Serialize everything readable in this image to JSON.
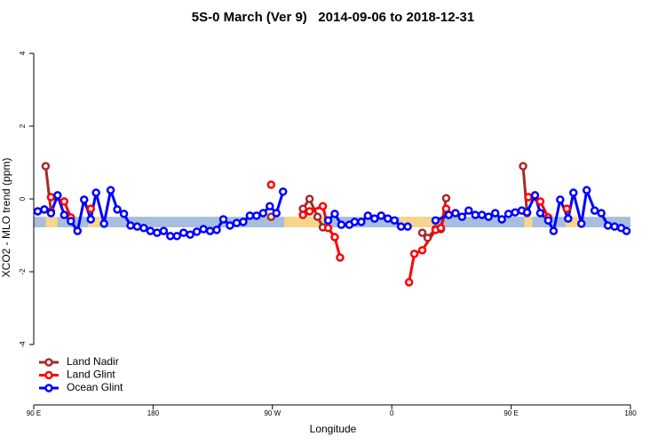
{
  "chart_data": {
    "type": "line",
    "title": "5S-0 March (Ver 9)   2014-09-06 to 2018-12-31",
    "x_label": "Longitude",
    "y_label": "XCO2 - MLO trend (ppm)",
    "xlim": [
      90,
      540
    ],
    "xticks": [
      {
        "value": 90,
        "label": "90 E"
      },
      {
        "value": 180,
        "label": "180"
      },
      {
        "value": 270,
        "label": "90 W"
      },
      {
        "value": 360,
        "label": "0"
      },
      {
        "value": 450,
        "label": "90 E"
      },
      {
        "value": 540,
        "label": "180"
      }
    ],
    "ylim": [
      -5.66,
      4.49
    ],
    "yticks": [
      -4,
      -2,
      0,
      2,
      4
    ],
    "band_ylim": [
      -0.78,
      -0.49
    ],
    "band_color": "#a7bedc",
    "highlight_color": "#f6d68c",
    "highlights": [
      [
        99,
        108
      ],
      [
        131,
        141
      ],
      [
        279,
        314
      ],
      [
        366,
        393
      ],
      [
        460,
        466
      ],
      [
        491,
        501
      ]
    ],
    "legend_position": "bottom-left",
    "series": [
      {
        "name": "Land Nadir",
        "color": "#a52a2a",
        "x": [
          99,
          103,
          null,
          269,
          null,
          293,
          298,
          304,
          308,
          null,
          383,
          387,
          393,
          397,
          401,
          null,
          459,
          462
        ],
        "values": [
          0.9,
          -0.34,
          null,
          -0.49,
          null,
          -0.27,
          0.0,
          -0.49,
          -0.78,
          null,
          -0.93,
          -1.07,
          -0.83,
          -0.83,
          0.02,
          null,
          0.9,
          -0.39
        ]
      },
      {
        "name": "Land Glint",
        "color": "#ff0000",
        "x": [
          103,
          113,
          118,
          null,
          133,
          null,
          269,
          null,
          293,
          298,
          308,
          312,
          317,
          321,
          null,
          373,
          377,
          383,
          393,
          397,
          401,
          null,
          463,
          472,
          478,
          null,
          492
        ],
        "values": [
          0.05,
          -0.07,
          -0.51,
          null,
          -0.27,
          null,
          0.39,
          null,
          -0.44,
          -0.34,
          -0.2,
          -0.8,
          -1.05,
          -1.61,
          null,
          -2.29,
          -1.51,
          -1.41,
          -0.85,
          -0.8,
          -0.27,
          null,
          0.05,
          -0.07,
          -0.51,
          null,
          -0.27
        ]
      },
      {
        "name": "Ocean Glint",
        "color": "#0000ff",
        "x": [
          93,
          98,
          103,
          108,
          113,
          118,
          123,
          128,
          133,
          137,
          143,
          148,
          153,
          158,
          163,
          168,
          173,
          178,
          183,
          188,
          193,
          198,
          203,
          208,
          213,
          218,
          223,
          228,
          233,
          238,
          243,
          248,
          253,
          258,
          263,
          268,
          273,
          278,
          null,
          312,
          317,
          322,
          328,
          332,
          337,
          342,
          347,
          352,
          357,
          362,
          367,
          372,
          null,
          393,
          403,
          408,
          413,
          418,
          423,
          428,
          433,
          438,
          443,
          448,
          453,
          458,
          462,
          468,
          472,
          478,
          482,
          487,
          493,
          497,
          503,
          507,
          513,
          518,
          523,
          528,
          533,
          537
        ],
        "values": [
          -0.34,
          -0.29,
          -0.39,
          0.1,
          -0.44,
          -0.61,
          -0.88,
          -0.02,
          -0.56,
          0.17,
          -0.68,
          0.24,
          -0.29,
          -0.41,
          -0.73,
          -0.76,
          -0.8,
          -0.88,
          -0.93,
          -0.88,
          -1.02,
          -1.02,
          -0.93,
          -0.98,
          -0.9,
          -0.83,
          -0.88,
          -0.85,
          -0.56,
          -0.73,
          -0.66,
          -0.63,
          -0.46,
          -0.46,
          -0.39,
          -0.2,
          -0.39,
          0.2,
          null,
          -0.59,
          -0.41,
          -0.71,
          -0.71,
          -0.63,
          -0.63,
          -0.46,
          -0.54,
          -0.46,
          -0.54,
          -0.59,
          -0.76,
          -0.76,
          null,
          -0.59,
          -0.44,
          -0.39,
          -0.49,
          -0.32,
          -0.44,
          -0.44,
          -0.49,
          -0.39,
          -0.56,
          -0.41,
          -0.37,
          -0.32,
          -0.37,
          0.1,
          -0.39,
          -0.59,
          -0.88,
          -0.02,
          -0.54,
          0.17,
          -0.68,
          0.24,
          -0.32,
          -0.39,
          -0.73,
          -0.76,
          -0.8,
          -0.88
        ]
      }
    ]
  }
}
